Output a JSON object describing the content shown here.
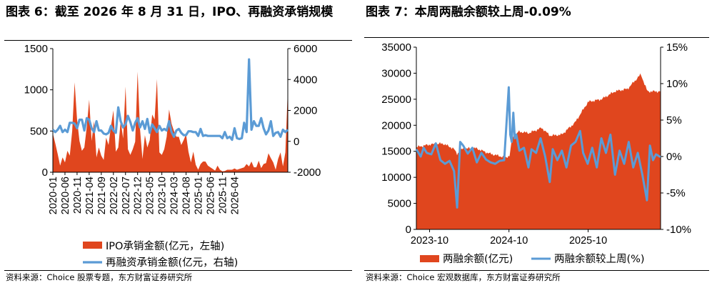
{
  "left": {
    "title": "图表 6：截至 2026 年 8 月 31 日，IPO、再融资承销规模",
    "source": "资料来源：Choice 股票专题，东方财富证券研究所",
    "chart_data": {
      "type": "area+line",
      "title": "图表 6：截至 2026 年 8 月 31 日，IPO、再融资承销规模",
      "xlabel": "",
      "ylabel": "",
      "x_ticks": [
        "2020-01",
        "2020-06",
        "2020-11",
        "2021-04",
        "2021-09",
        "2022-02",
        "2022-07",
        "2022-12",
        "2023-05",
        "2023-10",
        "2024-03",
        "2024-08",
        "2025-01",
        "2025-06",
        "2025-11",
        "2026-04"
      ],
      "x_start": "2020-01",
      "y_left": {
        "ylim": [
          0,
          1500
        ],
        "ticks": [
          0,
          500,
          1000,
          1500
        ]
      },
      "y_right": {
        "ylim": [
          -2000,
          6000
        ],
        "ticks": [
          -2000,
          0,
          2000,
          4000,
          6000
        ]
      },
      "legend_position": "bottom",
      "series": [
        {
          "name": "IPO承销金额(亿元，左轴)",
          "type": "area",
          "axis": "left",
          "color": "#E0461E",
          "values": [
            470,
            350,
            220,
            80,
            180,
            120,
            260,
            200,
            500,
            1090,
            640,
            380,
            260,
            300,
            550,
            880,
            380,
            620,
            180,
            300,
            200,
            150,
            420,
            330,
            560,
            750,
            250,
            300,
            620,
            410,
            1040,
            280,
            210,
            280,
            370,
            1220,
            520,
            160,
            450,
            300,
            390,
            700,
            640,
            1130,
            240,
            210,
            280,
            430,
            760,
            590,
            500,
            430,
            430,
            330,
            390,
            460,
            250,
            120,
            250,
            90,
            30,
            100,
            130,
            130,
            80,
            60,
            40,
            20,
            80,
            30,
            10,
            15,
            30,
            30,
            30,
            45,
            30,
            40,
            50,
            60,
            100,
            70,
            130,
            60,
            60,
            140,
            50,
            100,
            110,
            230,
            170,
            120,
            30,
            160,
            240,
            70,
            240,
            1000
          ]
        },
        {
          "name": "再融资承销金额(亿元，右轴)",
          "type": "line",
          "axis": "right",
          "color": "#5B9BD5",
          "values": [
            750,
            600,
            750,
            1000,
            600,
            750,
            600,
            1200,
            1200,
            1150,
            850,
            1400,
            1400,
            700,
            1500,
            1400,
            850,
            600,
            1300,
            700,
            700,
            500,
            450,
            550,
            1000,
            700,
            550,
            2200,
            1300,
            900,
            1100,
            1650,
            1250,
            700,
            1200,
            1500,
            900,
            1300,
            800,
            1450,
            550,
            1100,
            850,
            600,
            1000,
            700,
            800,
            700,
            1300,
            600,
            300,
            700,
            800,
            550,
            400,
            400,
            650,
            650,
            600,
            600,
            350,
            800,
            350,
            400,
            350,
            350,
            350,
            350,
            350,
            350,
            200,
            600,
            200,
            300,
            100,
            850,
            200,
            150,
            200,
            1200,
            600,
            5300,
            750,
            1300,
            1000,
            1000,
            1500,
            850,
            450,
            700,
            1300,
            350,
            550,
            600,
            300,
            750,
            600,
            750
          ]
        }
      ]
    }
  },
  "right": {
    "title": "图表 7：本周两融余额较上周-0.09%",
    "source": "资料来源：Choice 宏观数据库，东方财富证券研究所",
    "chart_data": {
      "type": "area+line",
      "title": "图表 7：本周两融余额较上周-0.09%",
      "xlabel": "",
      "ylabel": "",
      "x_ticks": [
        "2023-10",
        "2024-10",
        "2025-10"
      ],
      "x_range": [
        "2023-08-01",
        "2026-08-31"
      ],
      "y_left": {
        "ylim": [
          0,
          35000
        ],
        "ticks": [
          0,
          5000,
          10000,
          15000,
          20000,
          25000,
          30000,
          35000
        ]
      },
      "y_right": {
        "ylim": [
          -10,
          15
        ],
        "ticks": [
          "-10%",
          "-5%",
          "0%",
          "5%",
          "10%",
          "15%"
        ]
      },
      "legend_position": "bottom",
      "series": [
        {
          "name": "两融余额(亿元)",
          "type": "area",
          "axis": "left",
          "color": "#E0461E",
          "points": [
            [
              "2023-08-01",
              15800
            ],
            [
              "2023-10-01",
              16300
            ],
            [
              "2023-12-01",
              16500
            ],
            [
              "2024-01-20",
              15500
            ],
            [
              "2024-02-05",
              14500
            ],
            [
              "2024-03-01",
              15500
            ],
            [
              "2024-05-01",
              15600
            ],
            [
              "2024-07-01",
              14600
            ],
            [
              "2024-09-15",
              13800
            ],
            [
              "2024-10-05",
              14200
            ],
            [
              "2024-10-15",
              17500
            ],
            [
              "2024-11-15",
              18800
            ],
            [
              "2025-01-01",
              18500
            ],
            [
              "2025-03-01",
              19500
            ],
            [
              "2025-04-08",
              18000
            ],
            [
              "2025-06-01",
              18200
            ],
            [
              "2025-08-01",
              20500
            ],
            [
              "2025-10-01",
              24500
            ],
            [
              "2025-12-01",
              25000
            ],
            [
              "2026-02-01",
              26500
            ],
            [
              "2026-04-01",
              27000
            ],
            [
              "2026-06-01",
              29800
            ],
            [
              "2026-07-01",
              26500
            ],
            [
              "2026-08-31",
              26500
            ]
          ]
        },
        {
          "name": "两融余额较上周(%)",
          "type": "line",
          "axis": "right",
          "color": "#5B9BD5",
          "points": [
            [
              "2023-08-01",
              1.0
            ],
            [
              "2023-08-21",
              0.0
            ],
            [
              "2023-09-04",
              1.2
            ],
            [
              "2023-09-18",
              0.5
            ],
            [
              "2023-10-09",
              0.3
            ],
            [
              "2023-10-30",
              1.8
            ],
            [
              "2023-11-20",
              -0.5
            ],
            [
              "2023-12-11",
              -1.0
            ],
            [
              "2024-01-01",
              -0.6
            ],
            [
              "2024-01-22",
              -2.0
            ],
            [
              "2024-02-05",
              -7.0
            ],
            [
              "2024-02-19",
              2.0
            ],
            [
              "2024-03-04",
              1.5
            ],
            [
              "2024-03-25",
              0.4
            ],
            [
              "2024-04-15",
              1.2
            ],
            [
              "2024-05-06",
              -0.8
            ],
            [
              "2024-05-27",
              0.5
            ],
            [
              "2024-06-17",
              -0.4
            ],
            [
              "2024-07-08",
              -0.8
            ],
            [
              "2024-07-29",
              -1.0
            ],
            [
              "2024-08-19",
              -0.6
            ],
            [
              "2024-09-09",
              -0.5
            ],
            [
              "2024-09-30",
              9.5
            ],
            [
              "2024-10-07",
              3.0
            ],
            [
              "2024-10-14",
              2.0
            ],
            [
              "2024-10-21",
              6.0
            ],
            [
              "2024-10-28",
              2.5
            ],
            [
              "2024-11-04",
              3.0
            ],
            [
              "2024-11-18",
              0.8
            ],
            [
              "2024-12-09",
              1.2
            ],
            [
              "2024-12-30",
              -1.5
            ],
            [
              "2025-01-13",
              1.0
            ],
            [
              "2025-02-03",
              0.5
            ],
            [
              "2025-02-24",
              2.5
            ],
            [
              "2025-03-17",
              0.0
            ],
            [
              "2025-04-07",
              -3.5
            ],
            [
              "2025-04-21",
              1.0
            ],
            [
              "2025-05-12",
              -0.5
            ],
            [
              "2025-06-02",
              0.8
            ],
            [
              "2025-06-23",
              -1.5
            ],
            [
              "2025-07-14",
              1.5
            ],
            [
              "2025-08-04",
              2.0
            ],
            [
              "2025-08-25",
              3.5
            ],
            [
              "2025-09-08",
              0.5
            ],
            [
              "2025-09-29",
              -1.0
            ],
            [
              "2025-10-20",
              1.2
            ],
            [
              "2025-11-10",
              -1.5
            ],
            [
              "2025-12-01",
              2.5
            ],
            [
              "2025-12-22",
              0.5
            ],
            [
              "2026-01-12",
              3.0
            ],
            [
              "2026-02-02",
              -2.5
            ],
            [
              "2026-02-23",
              0.8
            ],
            [
              "2026-03-16",
              -1.0
            ],
            [
              "2026-04-06",
              2.0
            ],
            [
              "2026-04-27",
              -1.5
            ],
            [
              "2026-05-18",
              0.5
            ],
            [
              "2026-06-08",
              -2.5
            ],
            [
              "2026-06-29",
              -6.0
            ],
            [
              "2026-07-13",
              1.5
            ],
            [
              "2026-07-27",
              -0.5
            ],
            [
              "2026-08-10",
              0.3
            ],
            [
              "2026-08-31",
              -0.09
            ]
          ]
        }
      ]
    }
  }
}
